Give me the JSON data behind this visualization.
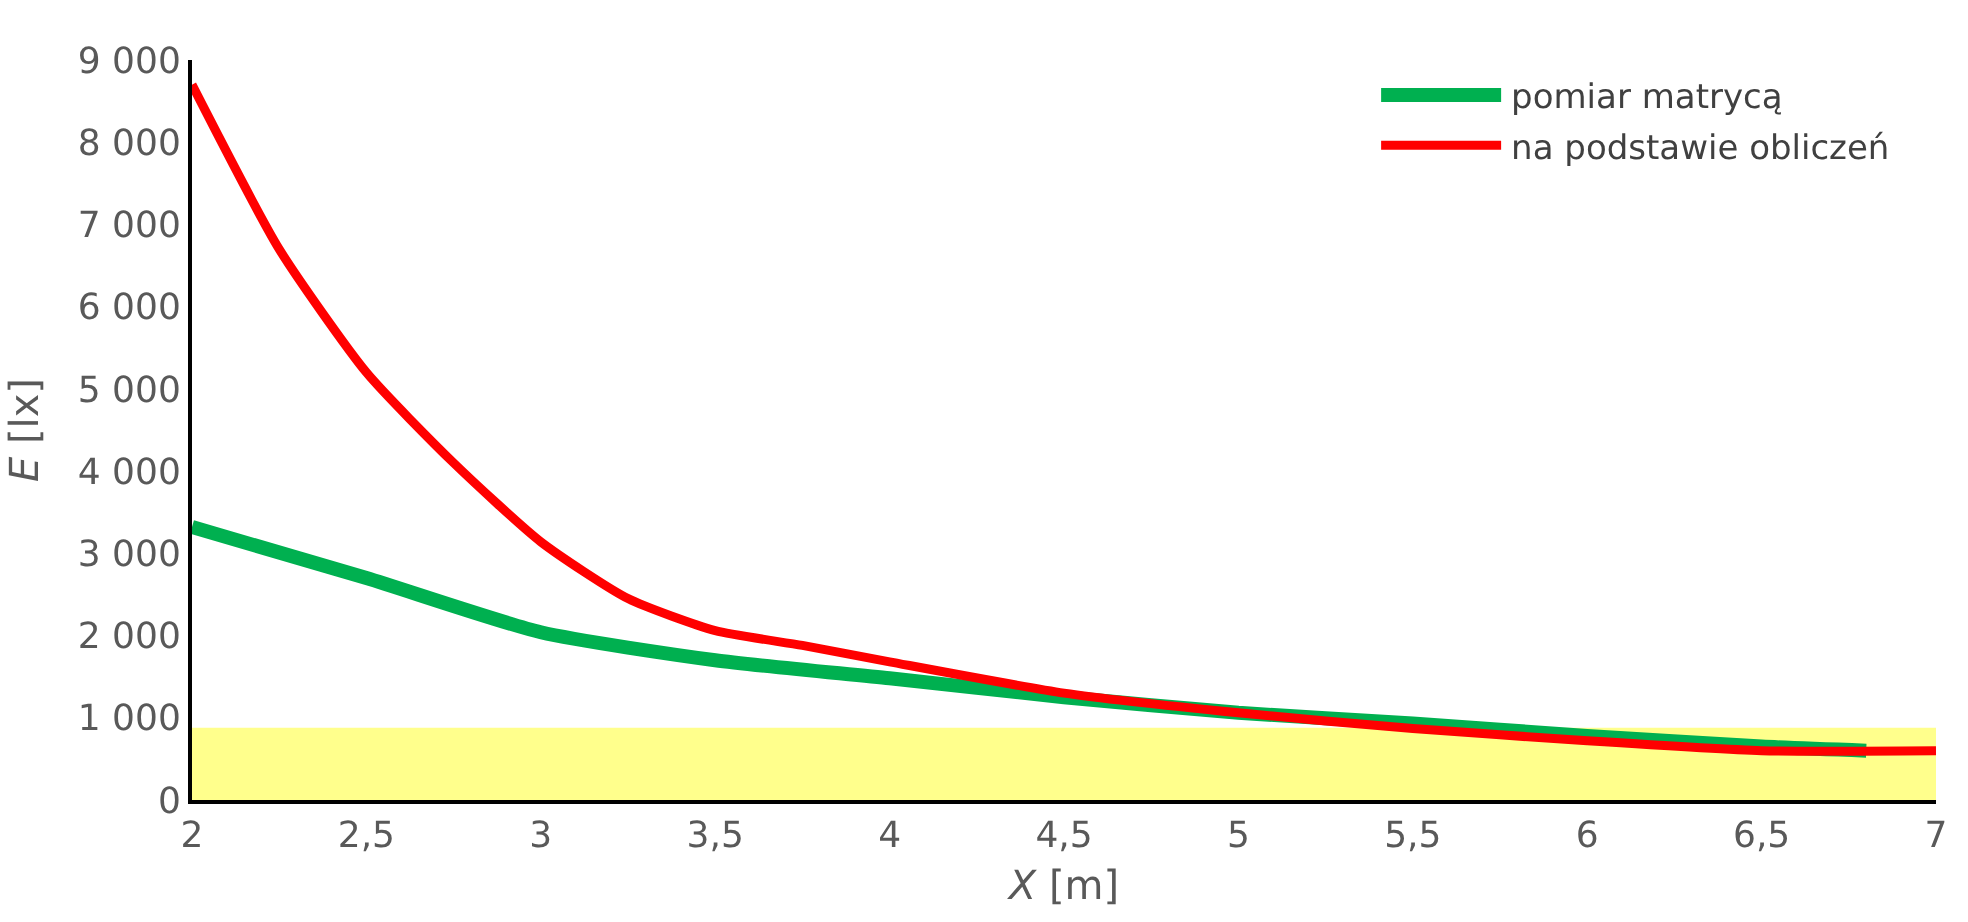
{
  "chart_data": {
    "type": "line",
    "xlabel": "X [m]",
    "ylabel": "E [lx]",
    "xlim": [
      2,
      7
    ],
    "ylim": [
      0,
      9000
    ],
    "xticks": [
      2,
      {
        "value": 2.5,
        "label": "2,5"
      },
      3,
      {
        "value": 3.5,
        "label": "3,5"
      },
      4,
      {
        "value": 4.5,
        "label": "4,5"
      },
      5,
      {
        "value": 5.5,
        "label": "5,5"
      },
      6,
      {
        "value": 6.5,
        "label": "6,5"
      },
      7
    ],
    "yticks": [
      0,
      {
        "value": 1000,
        "label": "1 000"
      },
      {
        "value": 2000,
        "label": "2 000"
      },
      {
        "value": 3000,
        "label": "3 000"
      },
      {
        "value": 4000,
        "label": "4 000"
      },
      {
        "value": 5000,
        "label": "5 000"
      },
      {
        "value": 6000,
        "label": "6 000"
      },
      {
        "value": 7000,
        "label": "7 000"
      },
      {
        "value": 8000,
        "label": "8 000"
      },
      {
        "value": 9000,
        "label": "9 000"
      }
    ],
    "series": [
      {
        "name": "pomiar matrycą",
        "color": "#00b050",
        "x": [
          2,
          2.5,
          3,
          3.5,
          4,
          4.5,
          5,
          5.5,
          6,
          6.5,
          6.8
        ],
        "values": [
          3320,
          2700,
          2040,
          1700,
          1480,
          1250,
          1060,
          930,
          780,
          650,
          600
        ]
      },
      {
        "name": "na podstawie obliczeń",
        "color": "#ff0000",
        "x": [
          2,
          2.25,
          2.5,
          2.75,
          3,
          3.25,
          3.5,
          3.75,
          4,
          4.5,
          5,
          5.5,
          6,
          6.5,
          7
        ],
        "values": [
          8700,
          6700,
          5200,
          4100,
          3140,
          2450,
          2060,
          1880,
          1680,
          1300,
          1060,
          870,
          720,
          600,
          600
        ]
      }
    ],
    "bands": [
      {
        "axis": "y",
        "from": 0,
        "to": 880,
        "color": "#ffff00"
      }
    ],
    "grid": false,
    "legend": "top right",
    "marker": "none",
    "line_style": "solid"
  }
}
